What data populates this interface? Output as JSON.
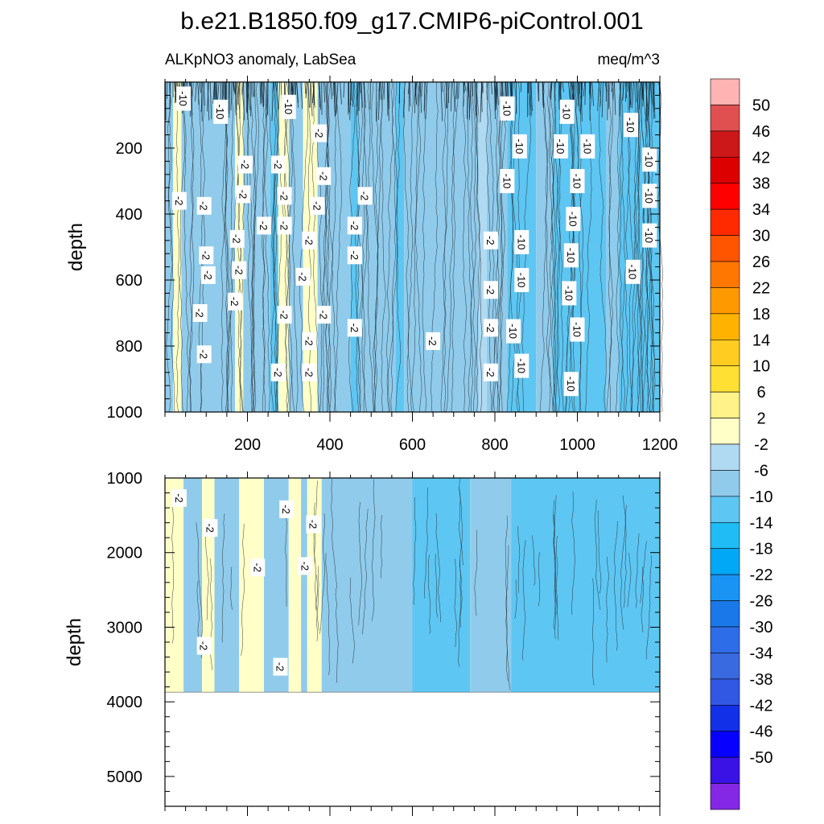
{
  "chart_data": {
    "type": "contour",
    "title": "b.e21.B1850.f09_g17.CMIP6-piControl.001",
    "subtitle_left": "ALKpNO3 anomaly, LabSea",
    "subtitle_right": "meq/m^3",
    "x": {
      "range": [
        0,
        1200
      ],
      "tick_values": [
        200,
        400,
        600,
        800,
        1000,
        1200
      ],
      "tick_labels": [
        "200",
        "400",
        "600",
        "800",
        "1000",
        "1200"
      ]
    },
    "panels": [
      {
        "name": "upper",
        "ylabel": "depth",
        "y_range": [
          0,
          1000
        ],
        "tick_values": [
          200,
          400,
          600,
          800,
          1000
        ],
        "tick_labels": [
          "200",
          "400",
          "600",
          "800",
          "1000"
        ],
        "bottom_depth": 1000,
        "bands": [
          {
            "x0": 0,
            "x1": 20,
            "level": -6
          },
          {
            "x0": 20,
            "x1": 40,
            "level": 2
          },
          {
            "x0": 40,
            "x1": 170,
            "level": -6
          },
          {
            "x0": 170,
            "x1": 190,
            "level": 2
          },
          {
            "x0": 190,
            "x1": 255,
            "level": -6
          },
          {
            "x0": 255,
            "x1": 275,
            "level": -10
          },
          {
            "x0": 275,
            "x1": 300,
            "level": 2
          },
          {
            "x0": 300,
            "x1": 335,
            "level": -6
          },
          {
            "x0": 335,
            "x1": 370,
            "level": 2
          },
          {
            "x0": 370,
            "x1": 450,
            "level": -6
          },
          {
            "x0": 450,
            "x1": 470,
            "level": -10
          },
          {
            "x0": 470,
            "x1": 560,
            "level": -6
          },
          {
            "x0": 560,
            "x1": 580,
            "level": -10
          },
          {
            "x0": 580,
            "x1": 760,
            "level": -6
          },
          {
            "x0": 760,
            "x1": 780,
            "level": -2
          },
          {
            "x0": 780,
            "x1": 830,
            "level": -6
          },
          {
            "x0": 830,
            "x1": 900,
            "level": -10
          },
          {
            "x0": 900,
            "x1": 940,
            "level": -6
          },
          {
            "x0": 940,
            "x1": 1070,
            "level": -10
          },
          {
            "x0": 1070,
            "x1": 1100,
            "level": -6
          },
          {
            "x0": 1100,
            "x1": 1200,
            "level": -10
          }
        ],
        "contour_labels": [
          {
            "x": 45,
            "y": 50,
            "text": "-10"
          },
          {
            "x": 135,
            "y": 90,
            "text": "-10"
          },
          {
            "x": 300,
            "y": 75,
            "text": "-10"
          },
          {
            "x": 830,
            "y": 80,
            "text": "-10"
          },
          {
            "x": 975,
            "y": 90,
            "text": "-10"
          },
          {
            "x": 1130,
            "y": 130,
            "text": "-10"
          },
          {
            "x": 860,
            "y": 195,
            "text": "-10"
          },
          {
            "x": 960,
            "y": 195,
            "text": "-10"
          },
          {
            "x": 1025,
            "y": 195,
            "text": "-10"
          },
          {
            "x": 1175,
            "y": 235,
            "text": "-10"
          },
          {
            "x": 830,
            "y": 300,
            "text": "-10"
          },
          {
            "x": 1000,
            "y": 300,
            "text": "-10"
          },
          {
            "x": 1175,
            "y": 345,
            "text": "-10"
          },
          {
            "x": 990,
            "y": 415,
            "text": "-10"
          },
          {
            "x": 1175,
            "y": 465,
            "text": "-10"
          },
          {
            "x": 865,
            "y": 485,
            "text": "-10"
          },
          {
            "x": 985,
            "y": 525,
            "text": "-10"
          },
          {
            "x": 1135,
            "y": 575,
            "text": "-10"
          },
          {
            "x": 865,
            "y": 600,
            "text": "-10"
          },
          {
            "x": 980,
            "y": 640,
            "text": "-10"
          },
          {
            "x": 1000,
            "y": 750,
            "text": "-10"
          },
          {
            "x": 845,
            "y": 755,
            "text": "-10"
          },
          {
            "x": 865,
            "y": 860,
            "text": "-10"
          },
          {
            "x": 985,
            "y": 915,
            "text": "-10"
          },
          {
            "x": 375,
            "y": 155,
            "text": "-2"
          },
          {
            "x": 195,
            "y": 250,
            "text": "-2"
          },
          {
            "x": 275,
            "y": 250,
            "text": "-2"
          },
          {
            "x": 385,
            "y": 285,
            "text": "-2"
          },
          {
            "x": 35,
            "y": 360,
            "text": "-2"
          },
          {
            "x": 190,
            "y": 340,
            "text": "-2"
          },
          {
            "x": 290,
            "y": 345,
            "text": "-2"
          },
          {
            "x": 485,
            "y": 345,
            "text": "-2"
          },
          {
            "x": 95,
            "y": 375,
            "text": "-2"
          },
          {
            "x": 370,
            "y": 375,
            "text": "-2"
          },
          {
            "x": 240,
            "y": 435,
            "text": "-2"
          },
          {
            "x": 290,
            "y": 435,
            "text": "-2"
          },
          {
            "x": 460,
            "y": 435,
            "text": "-2"
          },
          {
            "x": 175,
            "y": 475,
            "text": "-2"
          },
          {
            "x": 350,
            "y": 480,
            "text": "-2"
          },
          {
            "x": 790,
            "y": 480,
            "text": "-2"
          },
          {
            "x": 100,
            "y": 525,
            "text": "-2"
          },
          {
            "x": 460,
            "y": 525,
            "text": "-2"
          },
          {
            "x": 180,
            "y": 570,
            "text": "-2"
          },
          {
            "x": 105,
            "y": 585,
            "text": "-2"
          },
          {
            "x": 335,
            "y": 590,
            "text": "-2"
          },
          {
            "x": 790,
            "y": 630,
            "text": "-2"
          },
          {
            "x": 170,
            "y": 665,
            "text": "-2"
          },
          {
            "x": 85,
            "y": 700,
            "text": "-2"
          },
          {
            "x": 290,
            "y": 705,
            "text": "-2"
          },
          {
            "x": 385,
            "y": 705,
            "text": "-2"
          },
          {
            "x": 460,
            "y": 745,
            "text": "-2"
          },
          {
            "x": 790,
            "y": 745,
            "text": "-2"
          },
          {
            "x": 350,
            "y": 785,
            "text": "-2"
          },
          {
            "x": 650,
            "y": 785,
            "text": "-2"
          },
          {
            "x": 95,
            "y": 825,
            "text": "-2"
          },
          {
            "x": 275,
            "y": 880,
            "text": "-2"
          },
          {
            "x": 350,
            "y": 880,
            "text": "-2"
          },
          {
            "x": 790,
            "y": 880,
            "text": "-2"
          }
        ]
      },
      {
        "name": "lower",
        "ylabel": "depth",
        "y_range": [
          1000,
          5400
        ],
        "tick_values": [
          1000,
          2000,
          3000,
          4000,
          5000
        ],
        "tick_labels": [
          "1000",
          "2000",
          "3000",
          "4000",
          "5000"
        ],
        "bottom_depth": 3870,
        "bands": [
          {
            "x0": 0,
            "x1": 45,
            "level": 2
          },
          {
            "x0": 45,
            "x1": 90,
            "level": -6
          },
          {
            "x0": 90,
            "x1": 120,
            "level": 2
          },
          {
            "x0": 120,
            "x1": 180,
            "level": -6
          },
          {
            "x0": 180,
            "x1": 240,
            "level": 2
          },
          {
            "x0": 240,
            "x1": 300,
            "level": -6
          },
          {
            "x0": 300,
            "x1": 330,
            "level": 2
          },
          {
            "x0": 330,
            "x1": 345,
            "level": -6
          },
          {
            "x0": 345,
            "x1": 380,
            "level": 2
          },
          {
            "x0": 380,
            "x1": 600,
            "level": -6
          },
          {
            "x0": 600,
            "x1": 740,
            "level": -10
          },
          {
            "x0": 740,
            "x1": 840,
            "level": -6
          },
          {
            "x0": 840,
            "x1": 1200,
            "level": -10
          }
        ],
        "contour_labels": [
          {
            "x": 35,
            "y": 1270,
            "text": "-2"
          },
          {
            "x": 110,
            "y": 1670,
            "text": "-2"
          },
          {
            "x": 295,
            "y": 1420,
            "text": "-2"
          },
          {
            "x": 360,
            "y": 1620,
            "text": "-2"
          },
          {
            "x": 225,
            "y": 2200,
            "text": "-2"
          },
          {
            "x": 340,
            "y": 2180,
            "text": "-2"
          },
          {
            "x": 95,
            "y": 3250,
            "text": "-2"
          },
          {
            "x": 280,
            "y": 3530,
            "text": "-2"
          }
        ]
      }
    ],
    "colorbar": {
      "tick_labels": [
        "50",
        "46",
        "42",
        "38",
        "34",
        "30",
        "26",
        "22",
        "18",
        "14",
        "10",
        "6",
        "2",
        "-2",
        "-6",
        "-10",
        "-14",
        "-18",
        "-22",
        "-26",
        "-30",
        "-34",
        "-38",
        "-42",
        "-46",
        "-50"
      ],
      "colors_top_to_bottom": [
        "#ffb3b3",
        "#e05050",
        "#cc1818",
        "#dd0000",
        "#ff0000",
        "#ff2a00",
        "#ff5500",
        "#ff7700",
        "#ff9900",
        "#ffb300",
        "#ffcc22",
        "#ffe033",
        "#fff288",
        "#ffffc8",
        "#b0daf1",
        "#90cbeb",
        "#5ec6f2",
        "#1fbcf5",
        "#00a8f5",
        "#1994f5",
        "#1a78e8",
        "#2e6de8",
        "#3a6ae0",
        "#3158e3",
        "#1230e8",
        "#0800ff",
        "#3a12e6",
        "#8428e6"
      ]
    },
    "level_colors": {
      "2": "#ffffc8",
      "-2": "#b0daf1",
      "-6": "#90cbeb",
      "-10": "#5ec6f2"
    }
  }
}
